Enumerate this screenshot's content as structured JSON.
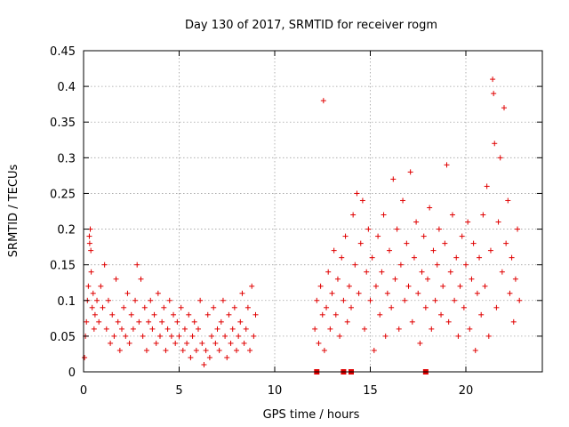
{
  "chart_data": {
    "type": "scatter",
    "title": "Day 130 of 2017, SRMTID for receiver rogm",
    "xlabel": "GPS time / hours",
    "ylabel": "SRMTID / TECUs",
    "xlim": [
      0,
      24
    ],
    "ylim": [
      0,
      0.45
    ],
    "xticks": [
      0,
      5,
      10,
      15,
      20
    ],
    "xtick_labels": [
      "0",
      "5",
      "10",
      "15",
      "20"
    ],
    "yticks": [
      0,
      0.05,
      0.1,
      0.15,
      0.2,
      0.25,
      0.3,
      0.35,
      0.4,
      0.45
    ],
    "ytick_labels": [
      "0",
      "0.05",
      "0.1",
      "0.15",
      "0.2",
      "0.25",
      "0.3",
      "0.35",
      "0.4",
      "0.45"
    ],
    "grid": true,
    "marker": "+",
    "color": "#e00000",
    "series": [
      {
        "name": "SRMTID",
        "points": [
          [
            0.05,
            0.02
          ],
          [
            0.1,
            0.05
          ],
          [
            0.15,
            0.07
          ],
          [
            0.2,
            0.1
          ],
          [
            0.25,
            0.12
          ],
          [
            0.3,
            0.19
          ],
          [
            0.32,
            0.18
          ],
          [
            0.35,
            0.2
          ],
          [
            0.38,
            0.17
          ],
          [
            0.4,
            0.14
          ],
          [
            0.45,
            0.09
          ],
          [
            0.5,
            0.11
          ],
          [
            0.55,
            0.06
          ],
          [
            0.6,
            0.08
          ],
          [
            0.7,
            0.1
          ],
          [
            0.8,
            0.07
          ],
          [
            0.9,
            0.12
          ],
          [
            1.0,
            0.09
          ],
          [
            1.1,
            0.15
          ],
          [
            1.2,
            0.06
          ],
          [
            1.3,
            0.1
          ],
          [
            1.4,
            0.04
          ],
          [
            1.5,
            0.08
          ],
          [
            1.6,
            0.05
          ],
          [
            1.7,
            0.13
          ],
          [
            1.8,
            0.07
          ],
          [
            1.9,
            0.03
          ],
          [
            2.0,
            0.06
          ],
          [
            2.1,
            0.09
          ],
          [
            2.2,
            0.05
          ],
          [
            2.3,
            0.11
          ],
          [
            2.4,
            0.04
          ],
          [
            2.5,
            0.08
          ],
          [
            2.6,
            0.06
          ],
          [
            2.7,
            0.1
          ],
          [
            2.8,
            0.15
          ],
          [
            2.9,
            0.07
          ],
          [
            3.0,
            0.13
          ],
          [
            3.1,
            0.05
          ],
          [
            3.2,
            0.09
          ],
          [
            3.3,
            0.03
          ],
          [
            3.4,
            0.07
          ],
          [
            3.5,
            0.1
          ],
          [
            3.6,
            0.06
          ],
          [
            3.7,
            0.08
          ],
          [
            3.8,
            0.04
          ],
          [
            3.9,
            0.11
          ],
          [
            4.0,
            0.05
          ],
          [
            4.1,
            0.07
          ],
          [
            4.2,
            0.09
          ],
          [
            4.3,
            0.03
          ],
          [
            4.4,
            0.06
          ],
          [
            4.5,
            0.1
          ],
          [
            4.6,
            0.05
          ],
          [
            4.7,
            0.08
          ],
          [
            4.8,
            0.04
          ],
          [
            4.9,
            0.07
          ],
          [
            5.0,
            0.05
          ],
          [
            5.1,
            0.09
          ],
          [
            5.2,
            0.03
          ],
          [
            5.3,
            0.06
          ],
          [
            5.4,
            0.04
          ],
          [
            5.5,
            0.08
          ],
          [
            5.6,
            0.02
          ],
          [
            5.7,
            0.05
          ],
          [
            5.8,
            0.07
          ],
          [
            5.9,
            0.03
          ],
          [
            6.0,
            0.06
          ],
          [
            6.1,
            0.1
          ],
          [
            6.2,
            0.04
          ],
          [
            6.3,
            0.01
          ],
          [
            6.4,
            0.03
          ],
          [
            6.5,
            0.08
          ],
          [
            6.6,
            0.02
          ],
          [
            6.7,
            0.05
          ],
          [
            6.8,
            0.09
          ],
          [
            6.9,
            0.04
          ],
          [
            7.0,
            0.06
          ],
          [
            7.1,
            0.03
          ],
          [
            7.2,
            0.07
          ],
          [
            7.3,
            0.1
          ],
          [
            7.4,
            0.05
          ],
          [
            7.5,
            0.02
          ],
          [
            7.6,
            0.08
          ],
          [
            7.7,
            0.04
          ],
          [
            7.8,
            0.06
          ],
          [
            7.9,
            0.09
          ],
          [
            8.0,
            0.03
          ],
          [
            8.1,
            0.05
          ],
          [
            8.2,
            0.07
          ],
          [
            8.3,
            0.11
          ],
          [
            8.4,
            0.04
          ],
          [
            8.5,
            0.06
          ],
          [
            8.6,
            0.09
          ],
          [
            8.7,
            0.03
          ],
          [
            8.8,
            0.12
          ],
          [
            8.9,
            0.05
          ],
          [
            9.0,
            0.08
          ],
          [
            12.1,
            0.06
          ],
          [
            12.2,
            0.1
          ],
          [
            12.3,
            0.04
          ],
          [
            12.4,
            0.12
          ],
          [
            12.5,
            0.08
          ],
          [
            12.55,
            0.38
          ],
          [
            12.6,
            0.03
          ],
          [
            12.7,
            0.09
          ],
          [
            12.8,
            0.14
          ],
          [
            12.9,
            0.06
          ],
          [
            13.0,
            0.11
          ],
          [
            13.1,
            0.17
          ],
          [
            13.2,
            0.08
          ],
          [
            13.3,
            0.13
          ],
          [
            13.4,
            0.05
          ],
          [
            13.5,
            0.16
          ],
          [
            13.6,
            0.1
          ],
          [
            13.7,
            0.19
          ],
          [
            13.8,
            0.07
          ],
          [
            13.9,
            0.12
          ],
          [
            14.0,
            0.09
          ],
          [
            14.1,
            0.22
          ],
          [
            14.2,
            0.15
          ],
          [
            14.3,
            0.25
          ],
          [
            14.4,
            0.11
          ],
          [
            14.5,
            0.18
          ],
          [
            14.6,
            0.24
          ],
          [
            14.7,
            0.06
          ],
          [
            14.8,
            0.14
          ],
          [
            14.9,
            0.2
          ],
          [
            15.0,
            0.1
          ],
          [
            15.1,
            0.16
          ],
          [
            15.2,
            0.03
          ],
          [
            15.3,
            0.12
          ],
          [
            15.4,
            0.19
          ],
          [
            15.5,
            0.08
          ],
          [
            15.6,
            0.14
          ],
          [
            15.7,
            0.22
          ],
          [
            15.8,
            0.05
          ],
          [
            15.9,
            0.11
          ],
          [
            16.0,
            0.17
          ],
          [
            16.1,
            0.09
          ],
          [
            16.2,
            0.27
          ],
          [
            16.3,
            0.13
          ],
          [
            16.4,
            0.2
          ],
          [
            16.5,
            0.06
          ],
          [
            16.6,
            0.15
          ],
          [
            16.7,
            0.24
          ],
          [
            16.8,
            0.1
          ],
          [
            16.9,
            0.18
          ],
          [
            17.0,
            0.12
          ],
          [
            17.1,
            0.28
          ],
          [
            17.2,
            0.07
          ],
          [
            17.3,
            0.16
          ],
          [
            17.4,
            0.21
          ],
          [
            17.5,
            0.11
          ],
          [
            17.6,
            0.04
          ],
          [
            17.7,
            0.14
          ],
          [
            17.8,
            0.19
          ],
          [
            17.9,
            0.09
          ],
          [
            18.0,
            0.13
          ],
          [
            18.1,
            0.23
          ],
          [
            18.2,
            0.06
          ],
          [
            18.3,
            0.17
          ],
          [
            18.4,
            0.1
          ],
          [
            18.5,
            0.15
          ],
          [
            18.6,
            0.2
          ],
          [
            18.7,
            0.08
          ],
          [
            18.8,
            0.12
          ],
          [
            18.9,
            0.18
          ],
          [
            19.0,
            0.29
          ],
          [
            19.1,
            0.07
          ],
          [
            19.2,
            0.14
          ],
          [
            19.3,
            0.22
          ],
          [
            19.4,
            0.1
          ],
          [
            19.5,
            0.16
          ],
          [
            19.6,
            0.05
          ],
          [
            19.7,
            0.12
          ],
          [
            19.8,
            0.19
          ],
          [
            19.9,
            0.09
          ],
          [
            20.0,
            0.15
          ],
          [
            20.1,
            0.21
          ],
          [
            20.2,
            0.06
          ],
          [
            20.3,
            0.13
          ],
          [
            20.4,
            0.18
          ],
          [
            20.5,
            0.03
          ],
          [
            20.6,
            0.11
          ],
          [
            20.7,
            0.16
          ],
          [
            20.8,
            0.08
          ],
          [
            20.9,
            0.22
          ],
          [
            21.0,
            0.12
          ],
          [
            21.1,
            0.26
          ],
          [
            21.2,
            0.05
          ],
          [
            21.3,
            0.17
          ],
          [
            21.4,
            0.41
          ],
          [
            21.45,
            0.39
          ],
          [
            21.5,
            0.32
          ],
          [
            21.6,
            0.09
          ],
          [
            21.7,
            0.21
          ],
          [
            21.8,
            0.3
          ],
          [
            21.9,
            0.14
          ],
          [
            22.0,
            0.37
          ],
          [
            22.1,
            0.18
          ],
          [
            22.2,
            0.24
          ],
          [
            22.3,
            0.11
          ],
          [
            22.4,
            0.16
          ],
          [
            22.5,
            0.07
          ],
          [
            22.6,
            0.13
          ],
          [
            22.7,
            0.2
          ],
          [
            22.8,
            0.1
          ]
        ]
      }
    ],
    "zero_markers_x": [
      12.2,
      13.6,
      14.0,
      17.9
    ]
  }
}
